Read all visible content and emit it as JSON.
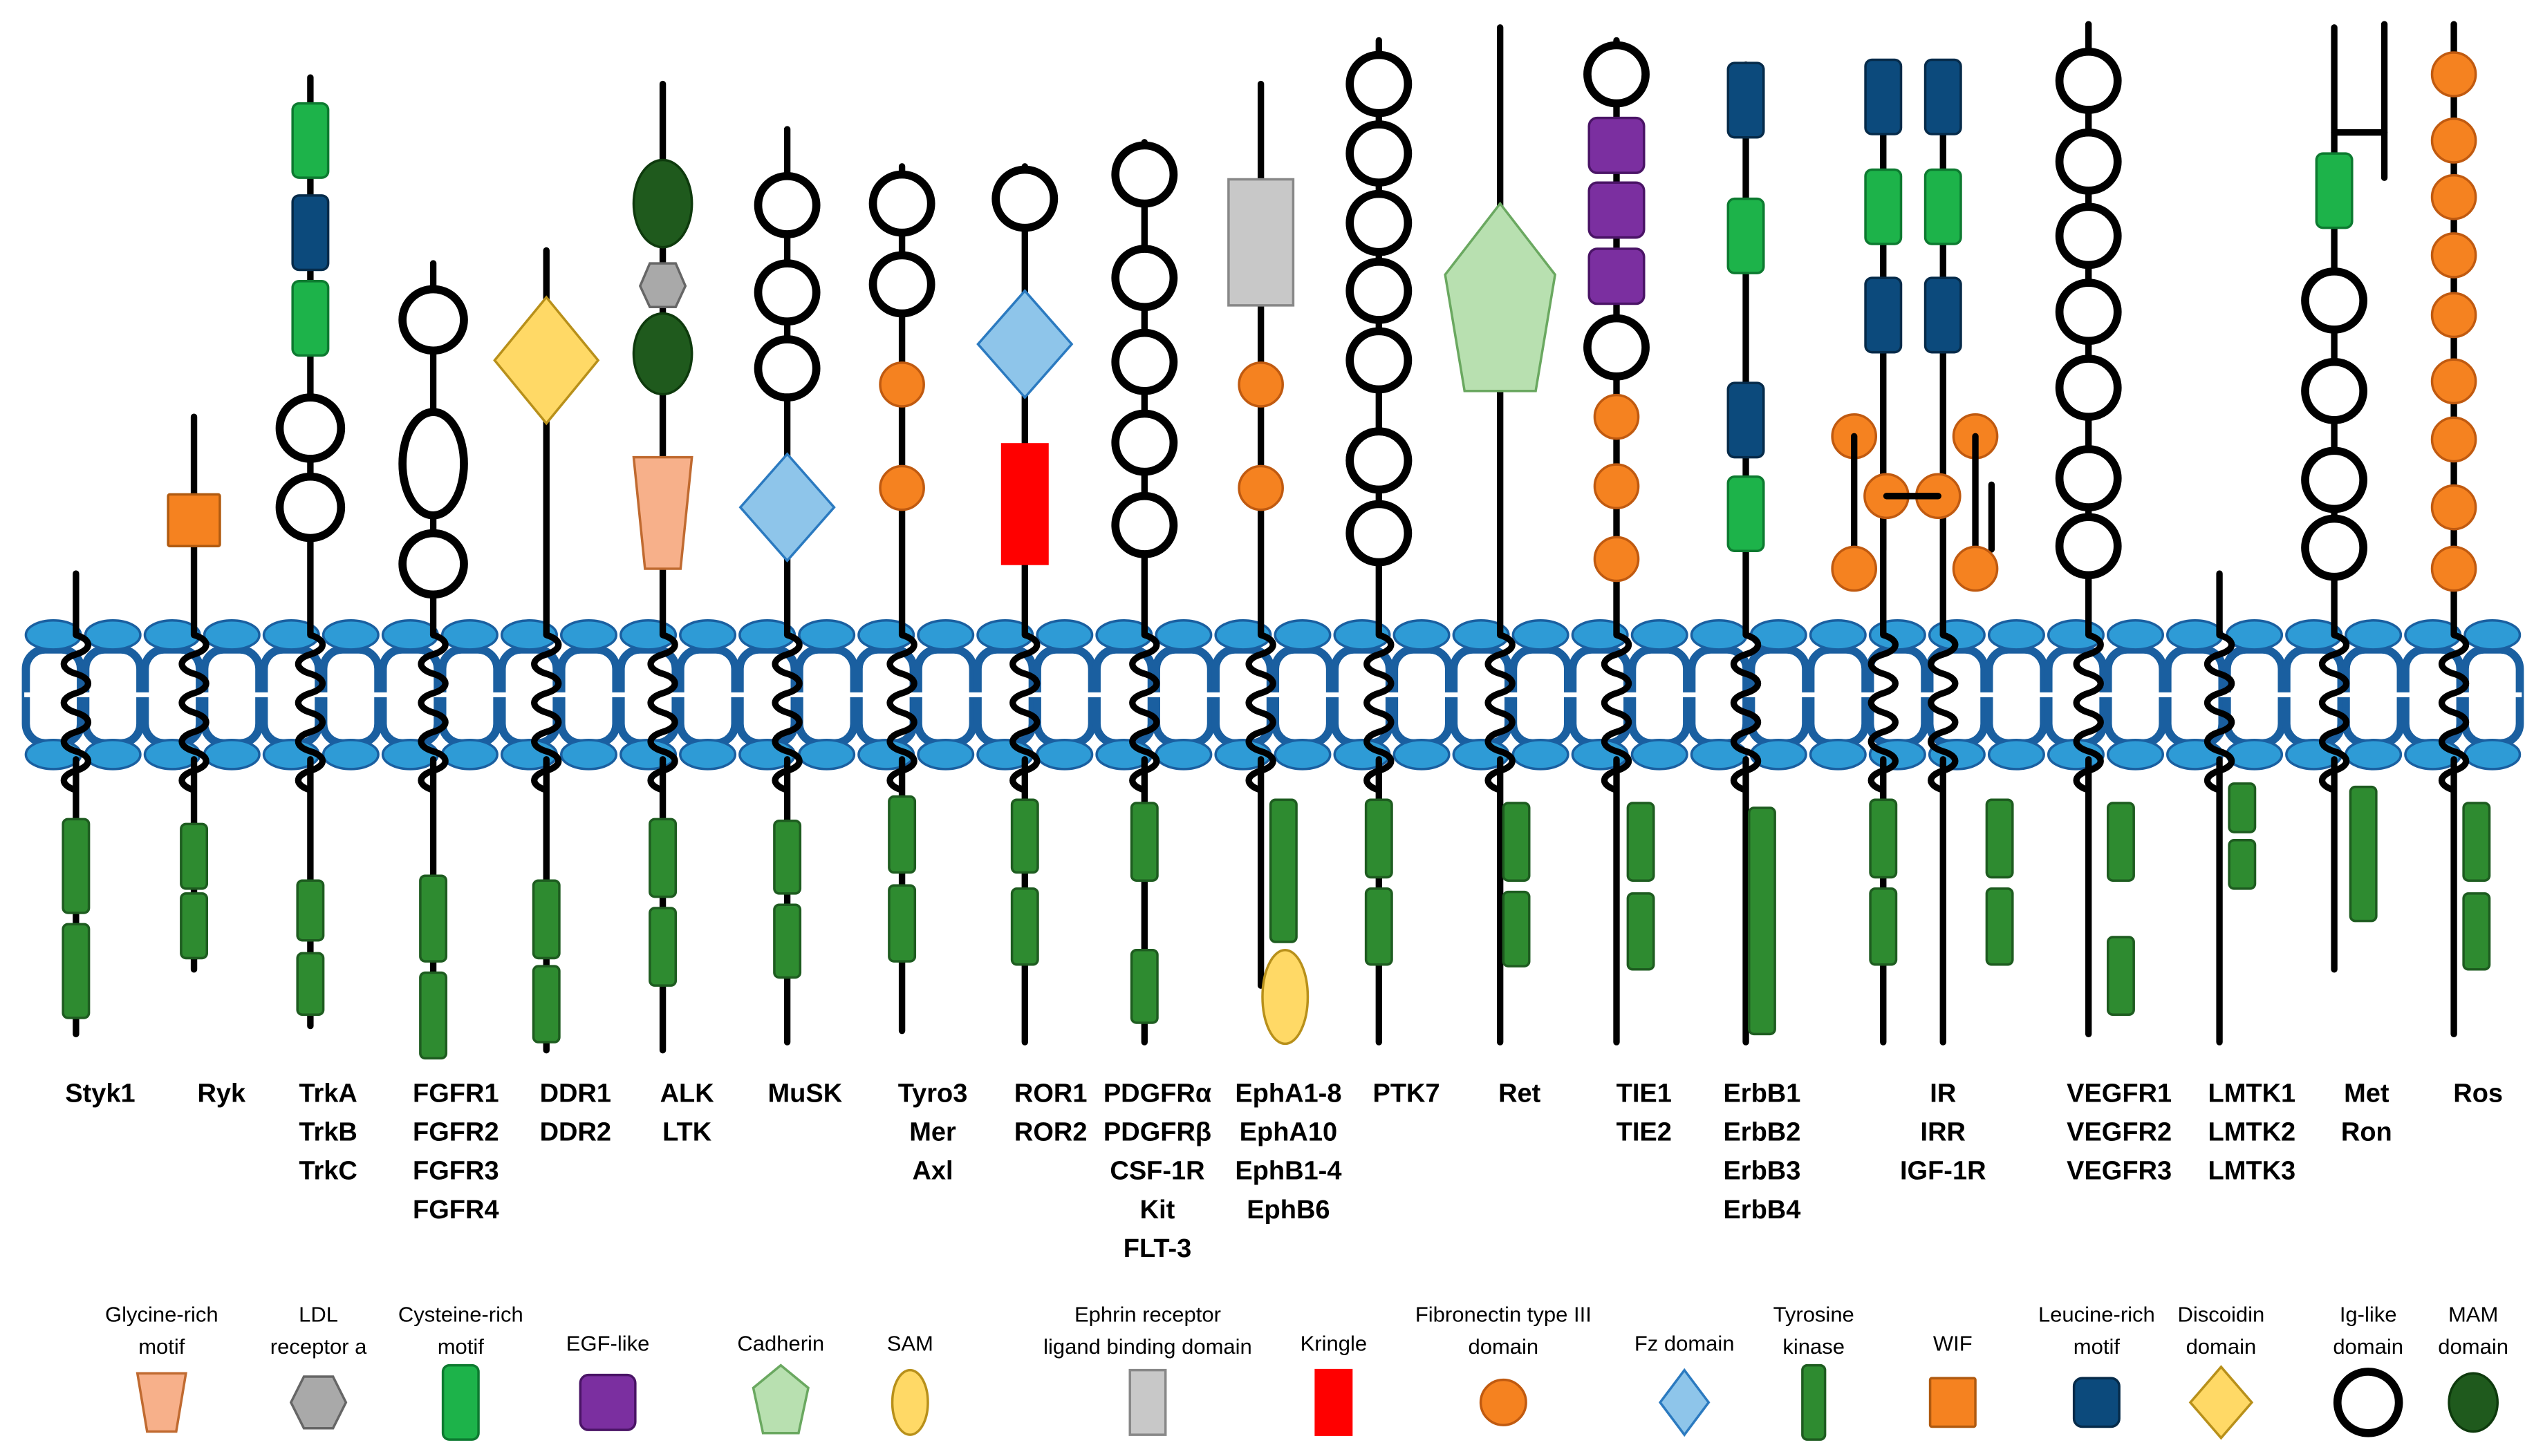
{
  "colors": {
    "membrane_fill": "#2e9bd6",
    "membrane_stroke": "#1a5fa0",
    "kinase": "#2e8b30",
    "ig_stroke": "#000000",
    "fn3": "#f58220",
    "cys": "#1db34a",
    "lrr": "#0c4a7c",
    "egf": "#7b2fa0",
    "mam": "#1f5a1d",
    "ldl": "#a9a9a9",
    "glycine": "#f7b08a",
    "fz": "#8ec5ea",
    "discoidin": "#ffd966",
    "wif": "#f58220",
    "kringle": "#ff0000",
    "ephrin": "#c8c8c8",
    "cadherin": "#b8e0b0",
    "sam": "#ffd966"
  },
  "receptors": [
    {
      "id": "styk1",
      "names": [
        "Styk1"
      ]
    },
    {
      "id": "ryk",
      "names": [
        "Ryk"
      ]
    },
    {
      "id": "trk",
      "names": [
        "TrkA",
        "TrkB",
        "TrkC"
      ]
    },
    {
      "id": "fgfr",
      "names": [
        "FGFR1",
        "FGFR2",
        "FGFR3",
        "FGFR4"
      ]
    },
    {
      "id": "ddr",
      "names": [
        "DDR1",
        "DDR2"
      ]
    },
    {
      "id": "alk",
      "names": [
        "ALK",
        "LTK"
      ]
    },
    {
      "id": "musk",
      "names": [
        "MuSK"
      ]
    },
    {
      "id": "tyro3",
      "names": [
        "Tyro3",
        "Mer",
        "Axl"
      ]
    },
    {
      "id": "ror",
      "names": [
        "ROR1",
        "ROR2"
      ]
    },
    {
      "id": "pdgfr",
      "names": [
        "PDGFRα",
        "PDGFRβ",
        "CSF-1R",
        "Kit",
        "FLT-3"
      ]
    },
    {
      "id": "eph",
      "names": [
        "EphA1-8",
        "EphA10",
        "EphB1-4",
        "EphB6"
      ]
    },
    {
      "id": "ptk7",
      "names": [
        "PTK7"
      ]
    },
    {
      "id": "ret",
      "names": [
        "Ret"
      ]
    },
    {
      "id": "tie",
      "names": [
        "TIE1",
        "TIE2"
      ]
    },
    {
      "id": "erbb",
      "names": [
        "ErbB1",
        "ErbB2",
        "ErbB3",
        "ErbB4"
      ]
    },
    {
      "id": "ir",
      "names": [
        "IR",
        "IRR",
        "IGF-1R"
      ]
    },
    {
      "id": "vegfr",
      "names": [
        "VEGFR1",
        "VEGFR2",
        "VEGFR3"
      ]
    },
    {
      "id": "lmtk",
      "names": [
        "LMTK1",
        "LMTK2",
        "LMTK3"
      ]
    },
    {
      "id": "met",
      "names": [
        "Met",
        "Ron"
      ]
    },
    {
      "id": "ros",
      "names": [
        "Ros"
      ]
    }
  ],
  "legend": [
    {
      "id": "glycine",
      "lines": [
        "Glycine-rich",
        "motif"
      ]
    },
    {
      "id": "ldl",
      "lines": [
        "LDL",
        "receptor a"
      ]
    },
    {
      "id": "cys",
      "lines": [
        "Cysteine-rich",
        "motif"
      ]
    },
    {
      "id": "egf",
      "lines": [
        "EGF-like"
      ]
    },
    {
      "id": "cadherin",
      "lines": [
        "Cadherin"
      ]
    },
    {
      "id": "sam",
      "lines": [
        "SAM"
      ]
    },
    {
      "id": "ephrin",
      "lines": [
        "Ephrin receptor",
        "ligand binding domain"
      ]
    },
    {
      "id": "kringle",
      "lines": [
        "Kringle"
      ]
    },
    {
      "id": "fn3",
      "lines": [
        "Fibronectin type III",
        "domain"
      ]
    },
    {
      "id": "fz",
      "lines": [
        "Fz domain"
      ]
    },
    {
      "id": "kinase",
      "lines": [
        "Tyrosine",
        "kinase"
      ]
    },
    {
      "id": "wif",
      "lines": [
        "WIF"
      ]
    },
    {
      "id": "lrr",
      "lines": [
        "Leucine-rich",
        "motif"
      ]
    },
    {
      "id": "discoidin",
      "lines": [
        "Discoidin",
        "domain"
      ]
    },
    {
      "id": "ig",
      "lines": [
        "Ig-like",
        "domain"
      ]
    },
    {
      "id": "mam",
      "lines": [
        "MAM",
        "domain"
      ]
    }
  ]
}
